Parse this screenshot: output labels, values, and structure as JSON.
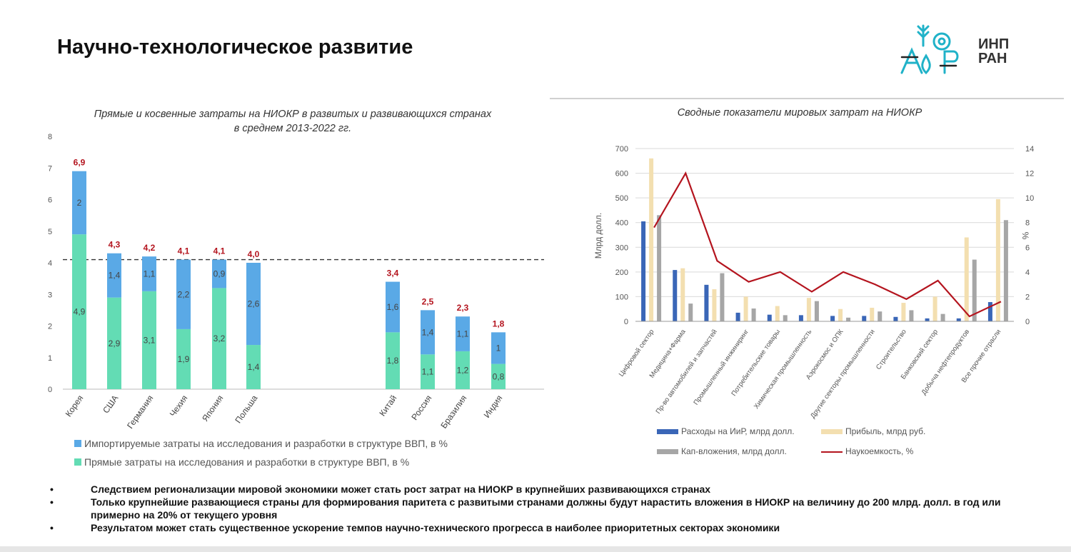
{
  "header": {
    "title": "Научно-технологическое развитие",
    "logo_text_line1": "ИНП",
    "logo_text_line2": "РАН"
  },
  "colors": {
    "imported": "#5aa9e6",
    "direct": "#63dcb4",
    "total_label": "#b4141e",
    "spend_bar": "#3a66b7",
    "profit_bar": "#f3dfb0",
    "capex_bar": "#a6a6a6",
    "intensity_line": "#b4141e",
    "logo_teal": "#20b2c8"
  },
  "chart_data": [
    {
      "type": "bar",
      "stacked": true,
      "title": "Прямые и косвенные затраты на НИОКР в развитых и развивающихся странах в среднем 2013-2022 гг.",
      "title_line1": "Прямые и косвенные затраты на НИОКР в развитых и развивающихся странах",
      "title_line2": "в среднем 2013-2022 гг.",
      "categories": [
        "Корея",
        "США",
        "Германия",
        "Чехия",
        "Япония",
        "Польша",
        "Китай",
        "Россия",
        "Бразилия",
        "Индия"
      ],
      "series": [
        {
          "name": "Прямые затраты на исследования и разработки в структуре ВВП, в %",
          "values": [
            4.9,
            2.9,
            3.1,
            1.9,
            3.2,
            1.4,
            1.8,
            1.1,
            1.2,
            0.8
          ],
          "labels": [
            "4,9",
            "2,9",
            "3,1",
            "1,9",
            "3,2",
            "1,4",
            "1,8",
            "1,1",
            "1,2",
            "0,8"
          ]
        },
        {
          "name": "Импортируемые затраты на исследования и разработки в структуре ВВП, в %",
          "values": [
            2,
            1.4,
            1.1,
            2.2,
            0.9,
            2.6,
            1.6,
            1.4,
            1.1,
            1
          ],
          "labels": [
            "2",
            "1,4",
            "1,1",
            "2,2",
            "0,9",
            "2,6",
            "1,6",
            "1,4",
            "1,1",
            "1"
          ]
        }
      ],
      "totals": [
        6.9,
        4.3,
        4.2,
        4.1,
        4.1,
        4.0,
        3.4,
        2.5,
        2.3,
        1.8
      ],
      "total_labels": [
        "6,9",
        "4,3",
        "4,2",
        "4,1",
        "4,1",
        "4,0",
        "3,4",
        "2,5",
        "2,3",
        "1,8"
      ],
      "reference_line": 4.1,
      "ylim": [
        0,
        8
      ],
      "yticks": [
        "0",
        "1",
        "2",
        "3",
        "4",
        "5",
        "6",
        "7",
        "8"
      ],
      "legend": [
        "Импортируемые затраты на исследования и разработки в структуре ВВП, в %",
        "Прямые затраты на исследования и разработки в структуре ВВП, в %"
      ]
    },
    {
      "type": "bar",
      "title": "Сводные показатели мировых затрат на НИОКР",
      "categories": [
        "Цифровой сектор",
        "Медицина+Фарма",
        "Пр-во автомобилей и запчастей",
        "Промышленный инжиниринг",
        "Потребительские товары",
        "Химическая промышленность",
        "Аэрокосмос и ОПК",
        "Другие секторы промышленности",
        "Строительство",
        "Банковский сектор",
        "Добыча нефтепродуктов",
        "Все прочие отрасли"
      ],
      "series": [
        {
          "name": "Расходы на ИиР, млрд долл.",
          "type": "bar",
          "axis": "left",
          "values": [
            405,
            208,
            148,
            35,
            27,
            25,
            22,
            22,
            18,
            12,
            12,
            78
          ]
        },
        {
          "name": "Прибыль, млрд руб.",
          "type": "bar",
          "axis": "left",
          "values": [
            660,
            215,
            130,
            100,
            62,
            95,
            50,
            55,
            75,
            100,
            340,
            495
          ]
        },
        {
          "name": "Кап-вложения, млрд долл.",
          "type": "bar",
          "axis": "left",
          "values": [
            430,
            72,
            195,
            52,
            25,
            82,
            15,
            40,
            45,
            30,
            250,
            410
          ]
        },
        {
          "name": "Наукоемкость, %",
          "type": "line",
          "axis": "right",
          "values": [
            7.6,
            12,
            4.9,
            3.2,
            4,
            2.4,
            4,
            3,
            1.8,
            3.3,
            0.4,
            1.6
          ]
        }
      ],
      "ylabel": "Млрд долл.",
      "y2label": "%",
      "ylim": [
        0,
        700
      ],
      "y2lim": [
        0,
        14
      ],
      "yticks": [
        "0",
        "100",
        "200",
        "300",
        "400",
        "500",
        "600",
        "700"
      ],
      "y2ticks": [
        "0",
        "2",
        "4",
        "6",
        "8",
        "10",
        "12",
        "14"
      ],
      "legend": [
        "Расходы на ИиР, млрд долл.",
        "Прибыль, млрд руб.",
        "Кап-вложения, млрд долл.",
        "Наукоемкость, %"
      ]
    }
  ],
  "bullets": [
    "Следствием регионализации  мировой экономики может стать рост затрат на НИОКР в крупнейших развивающихся странах",
    "Только крупнейшие развающиеся страны для формирования паритета с развитыми странами должны будут нарастить вложения в НИОКР на величину до 200 млрд. долл. в год или примерно на 20% от текущего уровня",
    "Результатом может стать существенное ускорение темпов научно-технического прогресса в наиболее приоритетных секторах экономики"
  ],
  "bullet_symbol": "•"
}
